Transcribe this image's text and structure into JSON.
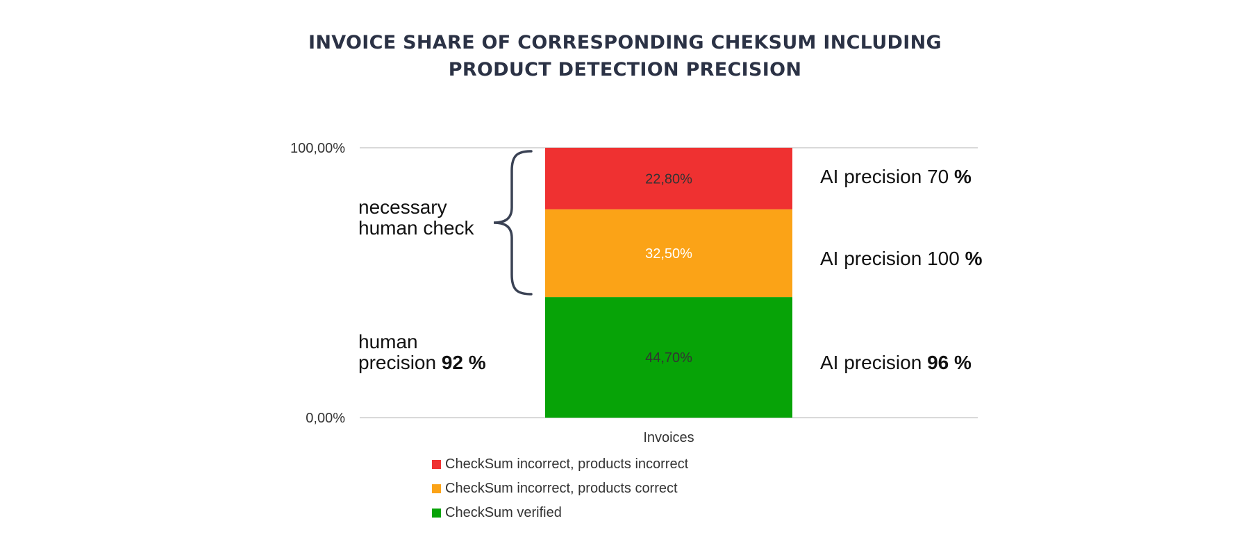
{
  "title_line1": "INVOICE SHARE OF CORRESPONDING CHEKSUM INCLUDING",
  "title_line2": "PRODUCT DETECTION PRECISION",
  "chart_data": {
    "type": "bar",
    "stacked": true,
    "categories": [
      "Invoices"
    ],
    "series": [
      {
        "name": "CheckSum verified",
        "values": [
          44.7
        ],
        "label": "44,70%",
        "color": "#07a307",
        "label_color": "#333333"
      },
      {
        "name": "CheckSum incorrect, products correct",
        "values": [
          32.5
        ],
        "label": "32,50%",
        "color": "#fba317",
        "label_color": "#ffffff"
      },
      {
        "name": "CheckSum incorrect, products incorrect",
        "values": [
          22.8
        ],
        "label": "22,80%",
        "color": "#ef3131",
        "label_color": "#333333"
      }
    ],
    "yticks": [
      "0,00%",
      "100,00%"
    ],
    "ylim": [
      0,
      100
    ],
    "grid": true,
    "legend_position": "bottom",
    "legend_order": [
      2,
      1,
      0
    ]
  },
  "annotations": {
    "brace_line1": "necessary",
    "brace_line2": "human check",
    "human_line1": "human",
    "human_line2": "precision ",
    "human_value": "92 %",
    "ai_red_prefix": "AI precision 70 ",
    "ai_red_suffix": "%",
    "ai_orange_prefix": "AI precision 100 ",
    "ai_orange_suffix": "%",
    "ai_green_prefix": "AI precision ",
    "ai_green_value": "96 %"
  }
}
